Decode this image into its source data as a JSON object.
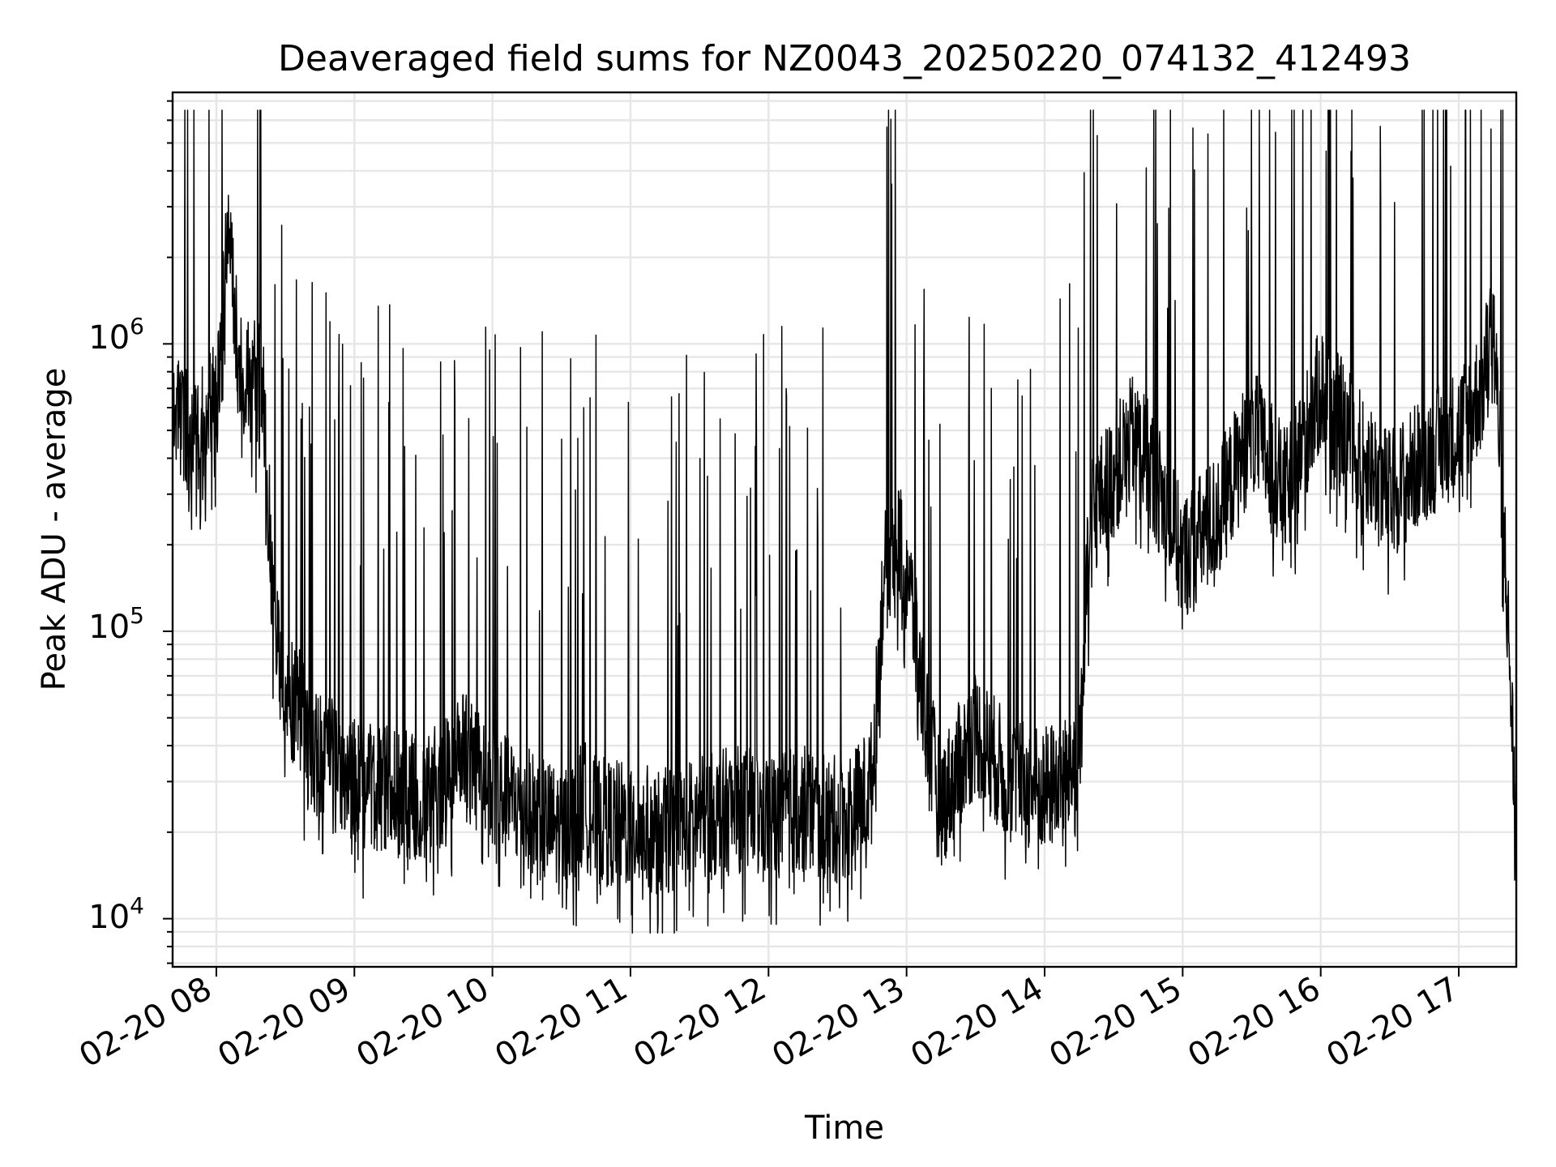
{
  "chart_data": {
    "type": "line",
    "title": "Deaveraged field sums for NZ0043_20250220_074132_412493",
    "xlabel": "Time",
    "ylabel": "Peak ADU - average",
    "x_ticks": [
      "02-20 08",
      "02-20 09",
      "02-20 10",
      "02-20 11",
      "02-20 12",
      "02-20 13",
      "02-20 14",
      "02-20 15",
      "02-20 16",
      "02-20 17"
    ],
    "x_range": [
      "2025-02-20 07:41",
      "2025-02-20 17:25"
    ],
    "y_scale": "log",
    "y_ticks": [
      {
        "base": "10",
        "exp": "4"
      },
      {
        "base": "10",
        "exp": "5"
      },
      {
        "base": "10",
        "exp": "6"
      }
    ],
    "ylim": [
      6800,
      7500000
    ],
    "grid": true,
    "line_color": "#000000",
    "series": [
      {
        "x": [
          "07:41",
          "07:50",
          "08:00",
          "08:05",
          "08:10",
          "08:20",
          "08:22",
          "08:25",
          "08:30",
          "08:35",
          "08:40",
          "08:50",
          "09:00",
          "09:15",
          "09:30",
          "09:40",
          "09:45",
          "10:00",
          "10:15",
          "10:30",
          "10:40",
          "10:45",
          "11:00",
          "11:15",
          "11:30",
          "11:45",
          "12:00",
          "12:15",
          "12:30",
          "12:40",
          "12:45",
          "12:50",
          "12:55",
          "13:00",
          "13:05",
          "13:10",
          "13:15",
          "13:30",
          "13:45",
          "14:00",
          "14:10",
          "14:15",
          "14:20",
          "14:30",
          "14:40",
          "14:45",
          "15:00",
          "15:15",
          "15:30",
          "15:45",
          "16:00",
          "16:15",
          "16:30",
          "16:45",
          "17:00",
          "17:10",
          "17:15",
          "17:20",
          "17:25"
        ],
        "y": [
          580000,
          480000,
          600000,
          2500000,
          800000,
          700000,
          350000,
          120000,
          50000,
          60000,
          40000,
          35000,
          30000,
          28000,
          26000,
          30000,
          40000,
          28000,
          24000,
          20000,
          25000,
          22000,
          21000,
          20000,
          22000,
          24000,
          23000,
          24000,
          22000,
          25000,
          30000,
          150000,
          220000,
          180000,
          80000,
          40000,
          25000,
          45000,
          30000,
          28000,
          32000,
          40000,
          250000,
          350000,
          500000,
          400000,
          180000,
          250000,
          500000,
          300000,
          700000,
          450000,
          300000,
          400000,
          500000,
          700000,
          1200000,
          200000,
          20000
        ]
      }
    ]
  }
}
